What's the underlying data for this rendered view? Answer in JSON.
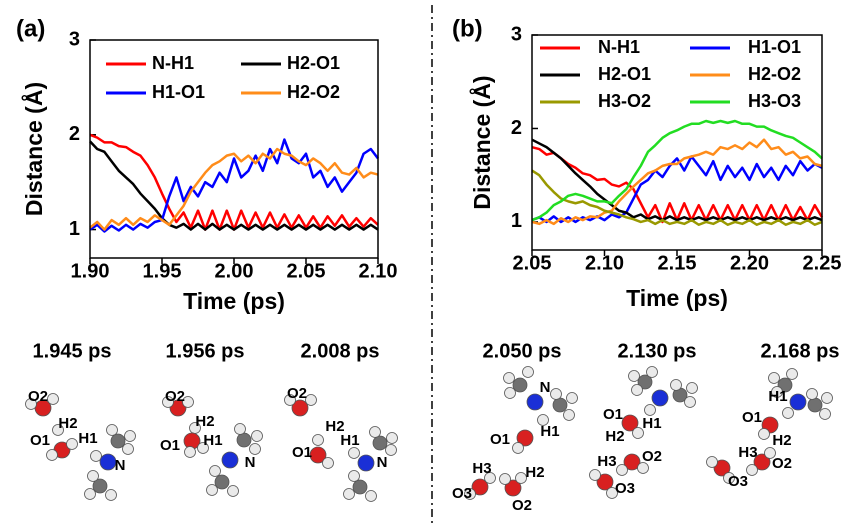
{
  "chart_data": [
    {
      "type": "line",
      "label": "(a)",
      "xlabel": "Time (ps)",
      "ylabel": "Distance (Å)",
      "x": [
        1.9,
        1.905,
        1.91,
        1.915,
        1.92,
        1.925,
        1.93,
        1.935,
        1.94,
        1.945,
        1.95,
        1.955,
        1.96,
        1.965,
        1.97,
        1.975,
        1.98,
        1.985,
        1.99,
        1.995,
        2.0,
        2.005,
        2.01,
        2.015,
        2.02,
        2.025,
        2.03,
        2.035,
        2.04,
        2.045,
        2.05,
        2.055,
        2.06,
        2.065,
        2.07,
        2.075,
        2.08,
        2.085,
        2.09,
        2.095,
        2.1
      ],
      "xlim": [
        1.9,
        2.1
      ],
      "xticks": [
        {
          "value": 1.9,
          "label": "1.90"
        },
        1.95,
        {
          "value": 2.0,
          "label": "2.00"
        },
        2.05,
        {
          "value": 2.1,
          "label": "2.10"
        }
      ],
      "ylim": [
        0.7,
        3
      ],
      "yticks": [
        1,
        2,
        3
      ],
      "series": [
        {
          "name": "N-H1",
          "color": "#ff0000",
          "values": [
            2.0,
            1.97,
            1.92,
            1.92,
            1.88,
            1.87,
            1.82,
            1.78,
            1.68,
            1.55,
            1.38,
            1.22,
            1.08,
            1.18,
            1.02,
            1.2,
            1.0,
            1.2,
            1.0,
            1.2,
            1.0,
            1.2,
            1.02,
            1.18,
            1.02,
            1.18,
            1.02,
            1.16,
            1.02,
            1.15,
            1.02,
            1.14,
            1.02,
            1.14,
            1.04,
            1.15,
            1.03,
            1.12,
            1.03,
            1.12,
            1.05
          ]
        },
        {
          "name": "H2-O1",
          "color": "#000000",
          "values": [
            1.93,
            1.85,
            1.82,
            1.72,
            1.62,
            1.55,
            1.48,
            1.38,
            1.3,
            1.22,
            1.12,
            1.05,
            1.02,
            1.06,
            1.0,
            1.06,
            1.0,
            1.06,
            1.0,
            1.05,
            1.0,
            1.05,
            1.0,
            1.05,
            1.0,
            1.05,
            1.0,
            1.05,
            1.0,
            1.05,
            1.0,
            1.05,
            1.0,
            1.05,
            1.0,
            1.05,
            1.0,
            1.05,
            1.0,
            1.05,
            1.0
          ]
        },
        {
          "name": "H1-O1",
          "color": "#0000ff",
          "values": [
            1.0,
            1.05,
            0.98,
            1.04,
            0.99,
            1.05,
            1.0,
            1.06,
            1.02,
            1.08,
            1.1,
            1.35,
            1.55,
            1.3,
            1.45,
            1.35,
            1.5,
            1.45,
            1.6,
            1.5,
            1.75,
            1.55,
            1.62,
            1.78,
            1.62,
            1.85,
            1.7,
            1.95,
            1.75,
            1.7,
            1.8,
            1.55,
            1.62,
            1.45,
            1.55,
            1.4,
            1.5,
            1.6,
            1.8,
            1.85,
            1.75
          ]
        },
        {
          "name": "H2-O2",
          "color": "#ff8c1a",
          "values": [
            1.02,
            1.08,
            1.0,
            1.1,
            1.05,
            1.12,
            1.05,
            1.12,
            1.08,
            1.15,
            1.1,
            1.05,
            1.15,
            1.25,
            1.4,
            1.5,
            1.6,
            1.68,
            1.72,
            1.78,
            1.8,
            1.72,
            1.78,
            1.7,
            1.8,
            1.75,
            1.85,
            1.8,
            1.78,
            1.72,
            1.68,
            1.75,
            1.7,
            1.62,
            1.7,
            1.6,
            1.58,
            1.65,
            1.55,
            1.6,
            1.58
          ]
        }
      ]
    },
    {
      "type": "line",
      "label": "(b)",
      "xlabel": "Time (ps)",
      "ylabel": "Distance (Å)",
      "x": [
        2.05,
        2.055,
        2.06,
        2.065,
        2.07,
        2.075,
        2.08,
        2.085,
        2.09,
        2.095,
        2.1,
        2.105,
        2.11,
        2.115,
        2.12,
        2.125,
        2.13,
        2.135,
        2.14,
        2.145,
        2.15,
        2.155,
        2.16,
        2.165,
        2.17,
        2.175,
        2.18,
        2.185,
        2.19,
        2.195,
        2.2,
        2.205,
        2.21,
        2.215,
        2.22,
        2.225,
        2.23,
        2.235,
        2.24,
        2.245,
        2.25
      ],
      "xlim": [
        2.05,
        2.25
      ],
      "xticks": [
        2.05,
        {
          "value": 2.1,
          "label": "2.10"
        },
        2.15,
        {
          "value": 2.2,
          "label": "2.20"
        },
        2.25
      ],
      "ylim": [
        0.7,
        3
      ],
      "yticks": [
        1,
        2,
        3
      ],
      "series": [
        {
          "name": "N-H1",
          "color": "#ff0000",
          "values": [
            1.8,
            1.78,
            1.72,
            1.74,
            1.68,
            1.62,
            1.58,
            1.52,
            1.5,
            1.45,
            1.46,
            1.4,
            1.38,
            1.42,
            1.35,
            1.2,
            1.05,
            1.18,
            1.0,
            1.2,
            1.02,
            1.2,
            1.02,
            1.18,
            1.02,
            1.18,
            1.02,
            1.18,
            1.02,
            1.18,
            1.02,
            1.18,
            1.02,
            1.18,
            1.02,
            1.18,
            1.02,
            1.16,
            1.02,
            1.18,
            1.05
          ]
        },
        {
          "name": "H1-O1",
          "color": "#0000ff",
          "values": [
            1.02,
            1.05,
            1.0,
            1.06,
            1.0,
            1.05,
            1.0,
            1.05,
            1.02,
            1.06,
            1.02,
            1.08,
            1.05,
            1.1,
            1.25,
            1.4,
            1.45,
            1.55,
            1.48,
            1.6,
            1.68,
            1.55,
            1.7,
            1.6,
            1.5,
            1.65,
            1.45,
            1.6,
            1.48,
            1.58,
            1.45,
            1.62,
            1.48,
            1.58,
            1.45,
            1.6,
            1.5,
            1.65,
            1.55,
            1.62,
            1.58
          ]
        },
        {
          "name": "H2-O1",
          "color": "#000000",
          "values": [
            1.88,
            1.84,
            1.8,
            1.74,
            1.68,
            1.6,
            1.52,
            1.45,
            1.38,
            1.3,
            1.24,
            1.18,
            1.12,
            1.1,
            1.05,
            1.08,
            1.03,
            1.06,
            1.02,
            1.06,
            1.02,
            1.05,
            1.02,
            1.05,
            1.02,
            1.05,
            1.02,
            1.05,
            1.02,
            1.05,
            1.02,
            1.05,
            1.02,
            1.05,
            1.02,
            1.05,
            1.02,
            1.05,
            1.02,
            1.05,
            1.02
          ]
        },
        {
          "name": "H2-O2",
          "color": "#ff8c1a",
          "values": [
            1.0,
            0.98,
            1.02,
            0.98,
            1.04,
            1.0,
            1.05,
            1.02,
            1.06,
            1.05,
            1.1,
            1.12,
            1.22,
            1.3,
            1.38,
            1.45,
            1.52,
            1.55,
            1.6,
            1.62,
            1.62,
            1.68,
            1.7,
            1.72,
            1.75,
            1.72,
            1.8,
            1.78,
            1.82,
            1.78,
            1.85,
            1.8,
            1.88,
            1.78,
            1.8,
            1.72,
            1.75,
            1.68,
            1.7,
            1.62,
            1.6
          ]
        },
        {
          "name": "H3-O2",
          "color": "#999900",
          "values": [
            1.55,
            1.5,
            1.4,
            1.32,
            1.25,
            1.22,
            1.2,
            1.22,
            1.18,
            1.16,
            1.12,
            1.1,
            1.08,
            1.05,
            1.03,
            1.0,
            1.02,
            0.98,
            1.02,
            0.98,
            1.0,
            0.98,
            1.02,
            0.97,
            1.0,
            0.98,
            1.02,
            0.97,
            1.0,
            0.98,
            1.02,
            0.97,
            1.0,
            0.98,
            1.02,
            0.97,
            1.0,
            0.98,
            1.02,
            0.97,
            1.0
          ]
        },
        {
          "name": "H3-O3",
          "color": "#22dd22",
          "values": [
            1.02,
            1.05,
            1.1,
            1.18,
            1.22,
            1.28,
            1.3,
            1.28,
            1.25,
            1.22,
            1.22,
            1.2,
            1.28,
            1.35,
            1.48,
            1.6,
            1.75,
            1.82,
            1.9,
            1.95,
            1.98,
            2.02,
            2.05,
            2.05,
            2.08,
            2.06,
            2.08,
            2.06,
            2.08,
            2.05,
            2.05,
            2.02,
            2.02,
            1.98,
            1.95,
            1.92,
            1.9,
            1.85,
            1.8,
            1.75,
            1.68
          ]
        }
      ]
    }
  ],
  "snapshots": [
    {
      "time": "1.945 ps",
      "labels": [
        "O2",
        "H2",
        "O1",
        "H1",
        "N"
      ]
    },
    {
      "time": "1.956 ps",
      "labels": [
        "O2",
        "H2",
        "O1",
        "H1",
        "N"
      ]
    },
    {
      "time": "2.008 ps",
      "labels": [
        "O2",
        "H2",
        "O1",
        "H1",
        "N"
      ]
    },
    {
      "time": "2.050 ps",
      "labels": [
        "N",
        "H1",
        "O1",
        "H3",
        "O3",
        "H2",
        "O2"
      ]
    },
    {
      "time": "2.130 ps",
      "labels": [
        "O1",
        "H2",
        "H1",
        "H3",
        "O2",
        "O3"
      ]
    },
    {
      "time": "2.168 ps",
      "labels": [
        "H1",
        "O1",
        "H2",
        "H3",
        "O2",
        "O3"
      ]
    }
  ]
}
